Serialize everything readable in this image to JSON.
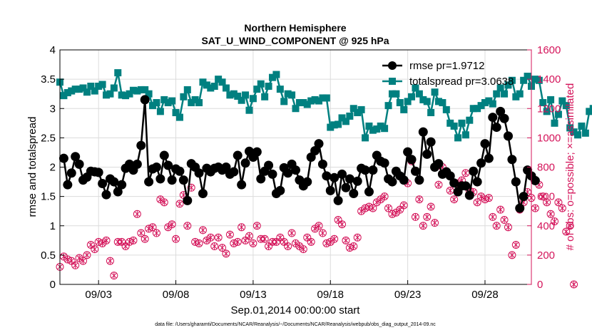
{
  "chart_data": {
    "type": "line",
    "title": [
      "Northern Hemisphere",
      "SAT_U_WIND_COMPONENT @ 925 hPa"
    ],
    "xlabel": "Sep.01,2014 00:00:00 start",
    "ylabel": "rmse and totalspread",
    "ylabel_right": "# of obs: o=possible; ×=assimilated",
    "footnote": "data file: /Users/gharamti/Documents/NCAR/Reanalysis/~/Documents/NCAR/Reanalysis/webpub/obs_diag_output_2014-09.nc",
    "xlim": [
      0.5,
      31
    ],
    "ylim": [
      0,
      4
    ],
    "ylim_right": [
      0,
      1600
    ],
    "x_ticks": [
      3,
      8,
      13,
      18,
      23,
      28
    ],
    "x_tick_labels": [
      "09/03",
      "09/08",
      "09/13",
      "09/18",
      "09/23",
      "09/28"
    ],
    "y_ticks": [
      0,
      0.5,
      1,
      1.5,
      2,
      2.5,
      3,
      3.5,
      4
    ],
    "y_tick_labels": [
      "0",
      "0.5",
      "1",
      "1.5",
      "2",
      "2.5",
      "3",
      "3.5",
      "4"
    ],
    "y_ticks_right": [
      0,
      200,
      400,
      600,
      800,
      1000,
      1200,
      1400,
      1600
    ],
    "y_tick_labels_right": [
      "0",
      "200",
      "400",
      "600",
      "800",
      "1000",
      "1200",
      "1400",
      "1600"
    ],
    "x_start": 0.5,
    "x_step": 0.25,
    "colors": {
      "rmse": "#000000",
      "spread": "#008080",
      "obs": "#d4145a"
    },
    "series": [
      {
        "name": "rmse",
        "legend": "rmse pr=1.9712",
        "values": [
          2.15,
          1.7,
          1.9,
          2.18,
          2.05,
          1.78,
          1.83,
          1.93,
          1.92,
          1.91,
          1.72,
          1.53,
          1.8,
          1.75,
          1.58,
          1.7,
          1.98,
          2.05,
          1.95,
          2.05,
          2.37,
          3.15,
          1.75,
          1.97,
          2.0,
          1.8,
          2.2,
          2.03,
          1.78,
          1.97,
          1.93,
          1.78,
          1.43,
          2.06,
          2.0,
          1.9,
          1.55,
          1.98,
          1.92,
          1.98,
          2.0,
          1.95,
          2.0,
          1.88,
          1.92,
          2.2,
          1.7,
          2.07,
          2.27,
          2.17,
          2.26,
          1.8,
          1.93,
          2.03,
          1.88,
          1.55,
          1.6,
          1.99,
          1.9,
          2.05,
          1.95,
          1.78,
          1.68,
          1.75,
          2.17,
          2.28,
          2.4,
          2.05,
          1.85,
          1.6,
          1.82,
          1.43,
          1.88,
          1.65,
          1.8,
          1.55,
          1.76,
          1.98,
          1.95,
          1.58,
          1.95,
          2.2,
          2.1,
          2.07,
          1.8,
          1.75,
          1.93,
          1.85,
          1.78,
          2.26,
          2.13,
          1.93,
          1.78,
          2.6,
          2.22,
          2.43,
          2.0,
          2.06,
          1.88,
          1.92,
          1.85,
          1.73,
          1.58,
          1.68,
          1.68,
          1.52,
          1.93,
          1.75,
          2.07,
          2.4,
          2.15,
          2.85,
          2.68,
          2.95,
          2.83,
          2.53,
          2.13,
          1.75,
          1.3,
          1.5,
          1.95,
          1.85,
          1.77
        ],
        "first_index": 1
      },
      {
        "name": "totalspread",
        "legend": "totalspread pr=3.0638",
        "values": [
          3.45,
          3.22,
          3.27,
          3.3,
          3.33,
          3.33,
          3.35,
          3.28,
          3.38,
          3.3,
          3.38,
          3.41,
          3.23,
          3.25,
          3.35,
          3.61,
          3.23,
          3.22,
          3.25,
          3.31,
          3.3,
          3.32,
          3.32,
          3.25,
          3.05,
          3.1,
          2.95,
          3.15,
          3.1,
          3.13,
          2.93,
          2.85,
          3.2,
          3.32,
          3.1,
          3.15,
          3.1,
          3.45,
          3.4,
          3.35,
          3.38,
          3.5,
          3.45,
          3.35,
          3.23,
          3.25,
          3.21,
          3.14,
          3.23,
          2.97,
          3.17,
          3.33,
          3.42,
          3.2,
          3.38,
          3.53,
          3.58,
          3.33,
          3.12,
          3.25,
          3.23,
          3.0,
          3.1,
          3.1,
          3.07,
          3.13,
          3.15,
          3.13,
          3.18,
          3.18,
          2.68,
          2.72,
          2.73,
          2.84,
          2.78,
          2.87,
          3.0,
          2.93,
          2.98,
          2.5,
          2.7,
          2.63,
          2.65,
          2.7,
          2.66,
          3.05,
          3.25,
          3.25,
          3.1,
          2.98,
          3.12,
          3.2,
          3.35,
          3.25,
          3.15,
          3.12,
          2.93,
          3.28,
          3.12,
          3.1,
          2.98,
          2.75,
          2.7,
          2.5,
          2.75,
          2.55,
          2.8,
          3.0,
          3.0,
          3.05,
          3.1,
          3.13,
          3.08,
          3.25,
          3.35,
          3.25,
          3.4,
          3.48,
          3.2,
          3.25,
          3.48,
          3.55,
          3.38,
          3.5,
          3.48,
          3.1,
          2.95,
          3.15,
          2.75,
          2.9,
          3.13,
          3.05,
          2.67,
          2.6,
          2.55,
          2.7,
          2.58,
          2.95,
          3.0,
          2.72,
          2.78,
          3.03
        ],
        "first_index": 0
      },
      {
        "name": "obs_possible",
        "legend": "",
        "values": [
          120,
          190,
          170,
          160,
          130,
          180,
          160,
          200,
          270,
          240,
          290,
          280,
          300,
          160,
          60,
          290,
          290,
          260,
          290,
          300,
          480,
          350,
          310,
          380,
          390,
          350,
          580,
          560,
          390,
          410,
          310,
          550,
          610,
          400,
          660,
          290,
          280,
          370,
          300,
          320,
          260,
          320,
          250,
          210,
          340,
          280,
          290,
          390,
          300,
          330,
          280,
          400,
          310,
          310,
          260,
          290,
          290,
          320,
          290,
          260,
          350,
          280,
          260,
          240,
          320,
          290,
          380,
          400,
          350,
          280,
          290,
          310,
          440,
          410,
          300,
          250,
          260,
          320,
          500,
          520,
          530,
          520,
          560,
          580,
          600,
          520,
          480,
          490,
          510,
          540,
          690,
          840,
          460,
          580,
          400,
          460,
          530,
          420,
          680,
          800,
          770,
          640,
          580,
          690,
          710,
          760,
          640,
          630,
          560,
          600,
          580,
          590,
          460,
          400,
          510,
          440,
          390,
          200,
          270,
          510,
          560,
          630,
          590,
          520,
          680,
          600,
          560,
          480,
          430,
          560,
          520,
          360,
          400,
          0
        ],
        "first_index": 0,
        "axis": "right"
      }
    ]
  }
}
